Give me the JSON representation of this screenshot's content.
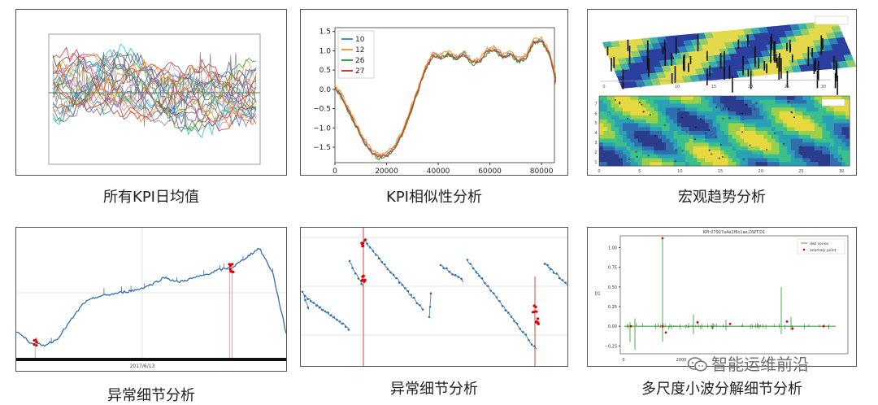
{
  "captions": {
    "p1": "所有KPI日均值",
    "p2": "KPI相似性分析",
    "p3": "宏观趋势分析",
    "p4": "异常细节分析",
    "p5": "异常细节分析",
    "p6": "多尺度小波分解细节分析"
  },
  "watermark": "智能运维前沿",
  "colors": {
    "c10": "#4a90c8",
    "c12": "#f39c3a",
    "c26": "#3aa63a",
    "c27": "#d03a2a",
    "blue": "#2f6fb0",
    "anom": "#e00000"
  },
  "chart_data": [
    {
      "type": "line",
      "title": "",
      "note": "KPI daily means (multi-series, illegible ticks)",
      "ylim": [
        -5,
        6
      ]
    },
    {
      "type": "line",
      "title": "",
      "xlim": [
        0,
        85000
      ],
      "ylim": [
        -1.9,
        1.6
      ],
      "xticks": [
        0,
        20000,
        40000,
        60000,
        80000
      ],
      "xtick_labels": [
        "0",
        "20000",
        "40000",
        "60000",
        "80000"
      ],
      "yticks": [
        -1.5,
        -1.0,
        -0.5,
        0.0,
        0.5,
        1.0,
        1.5
      ],
      "ytick_labels": [
        "−1.5",
        "−1.0",
        "−0.5",
        "0.0",
        "0.5",
        "1.0",
        "1.5"
      ],
      "legend": "top-left",
      "series": [
        {
          "name": "10",
          "x": [
            0,
            2000,
            5000,
            8000,
            11000,
            14000,
            17000,
            20000,
            23000,
            26000,
            29000,
            32000,
            35000,
            38000,
            41000,
            44000,
            47000,
            50000,
            53000,
            56000,
            59000,
            62000,
            65000,
            68000,
            71000,
            74000,
            77000,
            80000,
            83000,
            86000
          ],
          "y": [
            0.05,
            -0.1,
            -0.5,
            -0.9,
            -1.3,
            -1.6,
            -1.75,
            -1.7,
            -1.5,
            -1.15,
            -0.6,
            -0.05,
            0.55,
            0.9,
            0.85,
            0.95,
            0.8,
            0.95,
            0.7,
            0.75,
            1.0,
            1.05,
            0.85,
            0.95,
            0.75,
            0.85,
            1.25,
            1.3,
            0.95,
            0.2
          ]
        },
        {
          "name": "12",
          "x": [
            0,
            2000,
            5000,
            8000,
            11000,
            14000,
            17000,
            20000,
            23000,
            26000,
            29000,
            32000,
            35000,
            38000,
            41000,
            44000,
            47000,
            50000,
            53000,
            56000,
            59000,
            62000,
            65000,
            68000,
            71000,
            74000,
            77000,
            80000,
            83000,
            86000
          ],
          "y": [
            0.1,
            -0.05,
            -0.45,
            -0.85,
            -1.25,
            -1.55,
            -1.7,
            -1.65,
            -1.45,
            -1.1,
            -0.55,
            0.0,
            0.6,
            0.95,
            0.9,
            1.0,
            0.85,
            1.0,
            0.75,
            0.8,
            1.05,
            1.1,
            0.9,
            1.0,
            0.8,
            0.9,
            1.3,
            1.35,
            1.0,
            0.25
          ]
        },
        {
          "name": "26",
          "x": [
            0,
            2000,
            5000,
            8000,
            11000,
            14000,
            17000,
            20000,
            23000,
            26000,
            29000,
            32000,
            35000,
            38000,
            41000,
            44000,
            47000,
            50000,
            53000,
            56000,
            59000,
            62000,
            65000,
            68000,
            71000,
            74000,
            77000,
            80000,
            83000,
            86000
          ],
          "y": [
            0.0,
            -0.15,
            -0.55,
            -0.95,
            -1.35,
            -1.65,
            -1.8,
            -1.75,
            -1.55,
            -1.2,
            -0.65,
            -0.1,
            0.5,
            0.85,
            0.8,
            0.9,
            0.75,
            0.9,
            0.65,
            0.7,
            0.95,
            1.0,
            0.8,
            0.9,
            0.7,
            0.8,
            1.2,
            1.25,
            0.9,
            0.15
          ]
        },
        {
          "name": "27",
          "x": [
            0,
            2000,
            5000,
            8000,
            11000,
            14000,
            17000,
            20000,
            23000,
            26000,
            29000,
            32000,
            35000,
            38000,
            41000,
            44000,
            47000,
            50000,
            53000,
            56000,
            59000,
            62000,
            65000,
            68000,
            71000,
            74000,
            77000,
            80000,
            83000,
            86000
          ],
          "y": [
            0.02,
            -0.12,
            -0.52,
            -0.92,
            -1.32,
            -1.62,
            -1.77,
            -1.72,
            -1.52,
            -1.17,
            -0.62,
            -0.07,
            0.52,
            0.88,
            0.82,
            0.92,
            0.78,
            0.92,
            0.68,
            0.72,
            0.98,
            1.02,
            0.82,
            0.92,
            0.72,
            0.82,
            1.22,
            1.28,
            0.92,
            0.12
          ]
        }
      ]
    },
    {
      "type": "heatmap",
      "title": "",
      "note": "3D surface (top) and contour map (bottom)",
      "xticks": [
        0,
        5,
        10,
        15,
        20,
        25,
        30
      ],
      "yticks": [
        1,
        2,
        3,
        4,
        5,
        6,
        7
      ]
    },
    {
      "type": "line",
      "title": "",
      "date_label": "2017/6/13",
      "ylim": [
        0,
        1
      ],
      "x": [
        0,
        5,
        10,
        15,
        20,
        25,
        30,
        35,
        40,
        45,
        50,
        55,
        60,
        65,
        70,
        75,
        80,
        85,
        90,
        95,
        100
      ],
      "y": [
        0.22,
        0.13,
        0.1,
        0.15,
        0.3,
        0.45,
        0.5,
        0.52,
        0.54,
        0.56,
        0.6,
        0.66,
        0.62,
        0.65,
        0.68,
        0.72,
        0.74,
        0.82,
        0.9,
        0.7,
        0.2
      ],
      "anomalies_x": [
        7,
        79,
        80
      ]
    },
    {
      "type": "scatter",
      "title": "",
      "note": "sawtooth KPI with anomalies",
      "anomalies_x": [
        22,
        75,
        77
      ]
    },
    {
      "type": "line",
      "title": "KPI:07927a4e1f6c1ae,DWT:D1",
      "legend": "top-right",
      "legend_entries": [
        "dwt series",
        "anomaly point"
      ],
      "xticks": [
        0,
        2000
      ],
      "xtick_labels": [
        "0",
        "2000"
      ],
      "yticks": [
        -0.25,
        0.0,
        0.25,
        0.5,
        0.75,
        1.0
      ],
      "ytick_labels": [
        "−0.25",
        "0.00",
        "0.25",
        "0.50",
        "0.75",
        "1.00"
      ],
      "ylim": [
        -0.35,
        1.15
      ],
      "ylabel": "D1"
    }
  ]
}
